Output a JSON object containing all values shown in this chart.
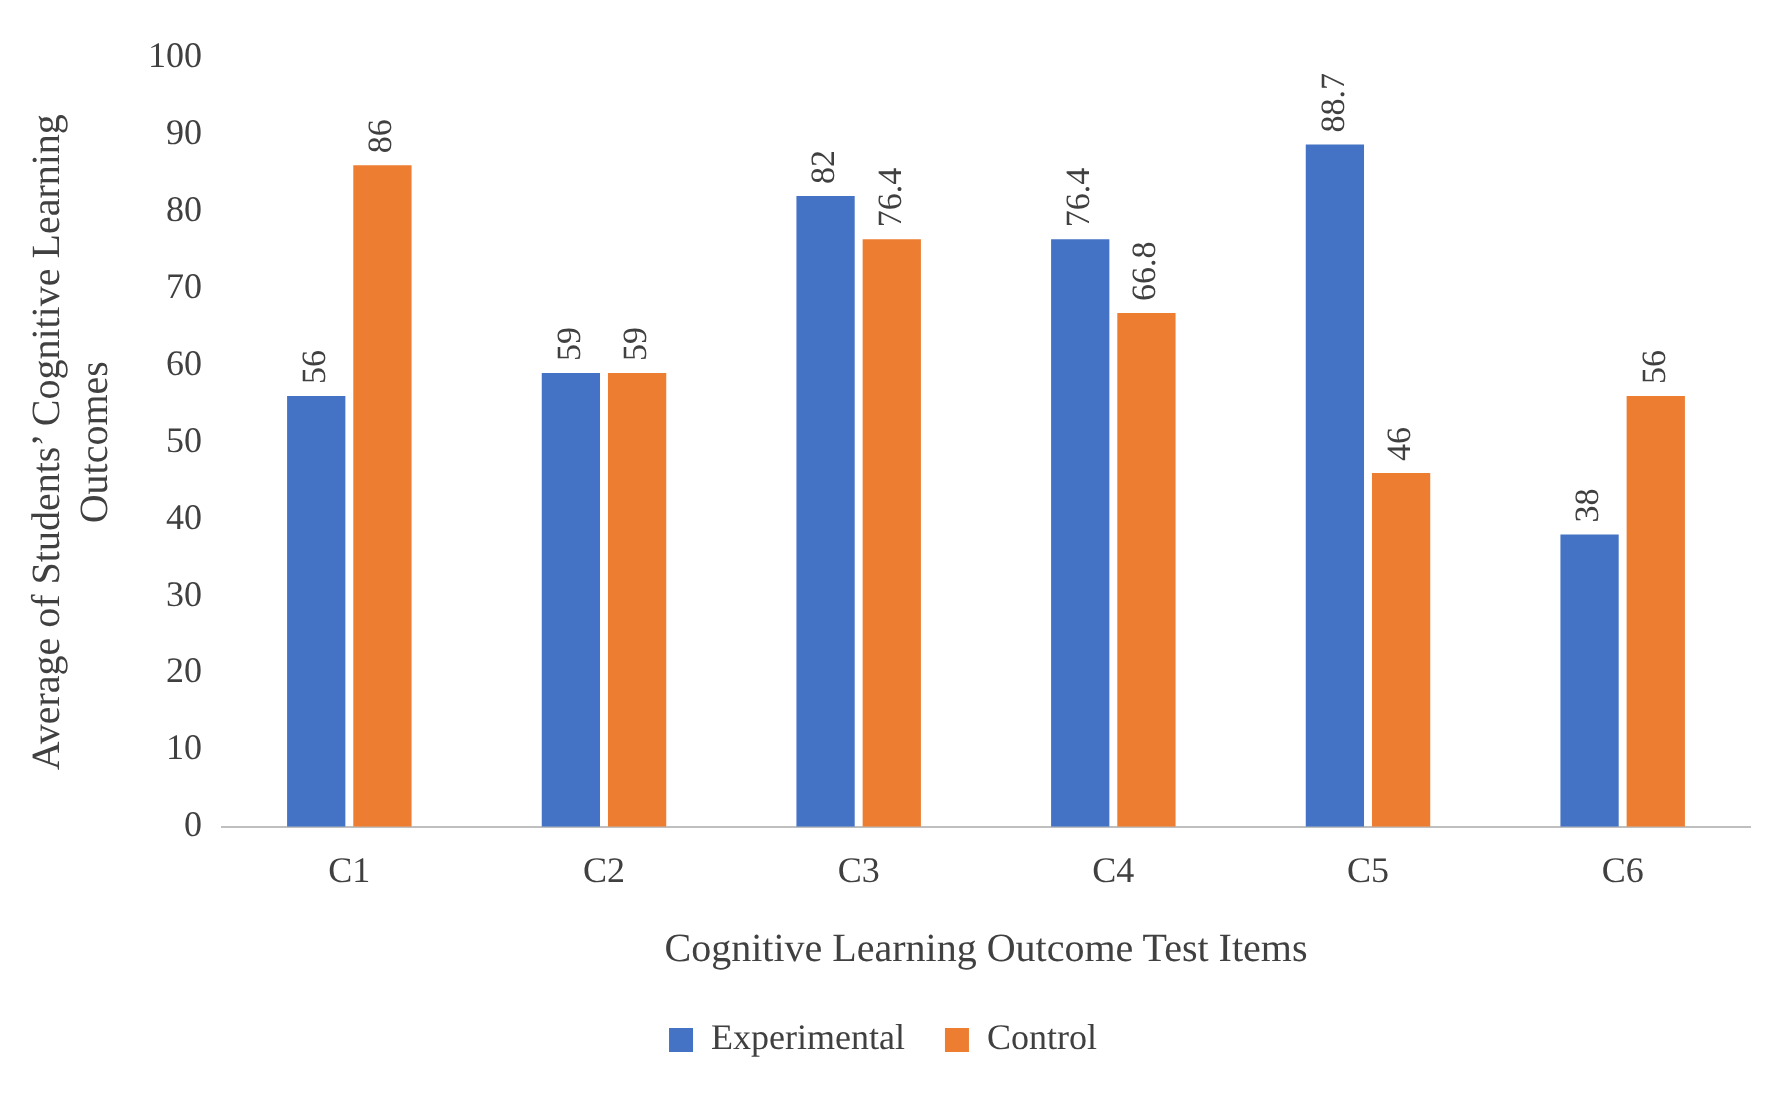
{
  "chart_data": {
    "type": "bar",
    "xlabel": "Cognitive Learning Outcome Test Items",
    "ylabel": "Average of Students’ Cognitive Learning Outcomes",
    "categories": [
      "C1",
      "C2",
      "C3",
      "C4",
      "C5",
      "C6"
    ],
    "series": [
      {
        "name": "Experimental",
        "color": "#4472c4",
        "values": [
          56,
          59,
          82,
          76.4,
          88.7,
          38
        ]
      },
      {
        "name": "Control",
        "color": "#ed7d31",
        "values": [
          86,
          59,
          76.4,
          66.8,
          46,
          56
        ]
      }
    ],
    "ylim": [
      0,
      100
    ],
    "yticks": [
      0,
      10,
      20,
      30,
      40,
      50,
      60,
      70,
      80,
      90,
      100
    ],
    "grid": false,
    "legend": "bottom",
    "data_labels": true
  }
}
